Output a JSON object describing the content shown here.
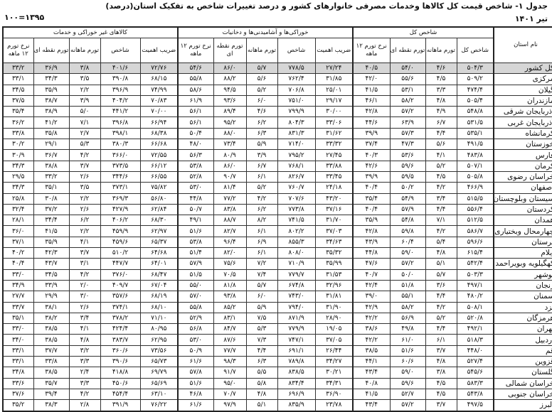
{
  "title": "جدول ۱- شاخص قیمت کل کالاها وخدمات مصرفی خانوارهای کشور و درصد تغییرات شاخص به تفکیک استان(درصد)",
  "period": "تیر ۱۴۰۱",
  "base": "۱۳۹۵=۱۰۰",
  "header": {
    "province": "نام استان",
    "groups": [
      "شاخص کل",
      "خوراکی‌ها و آشامیدنی‌ها و دخانیات",
      "کالاهای غیر خوراکی و خدمات"
    ],
    "total_cols": [
      "شاخص کل",
      "تورم ماهانه",
      "تورم نقطه ای",
      "نرخ تورم ۱۲ ماهه"
    ],
    "group_cols": [
      "ضریب اهمیت",
      "شاخص",
      "تورم ماهانه",
      "تورم نقطه ای",
      "نرخ تورم ۱۲ ماهه"
    ]
  },
  "rows": [
    [
      "کل کشور",
      "۵۰۴/۳",
      "۴/۶",
      "۵۴/۰",
      "۴۰/۵",
      "۲۷/۲۴",
      "۷۷۸/۵",
      "۵/۷",
      "۸۶/۰",
      "۵۴/۶",
      "۷۲/۷۶",
      "۴۰۱/۶",
      "۳/۸",
      "۳۶/۹",
      "۳۳/۲"
    ],
    [
      "مرکزی",
      "۵۰۹/۲",
      "۴/۵",
      "۵۵/۶",
      "۴۲/۰",
      "۳۱/۸۵",
      "۷۶۲/۴",
      "۵/۶",
      "۸۸/۲",
      "۵۵/۸",
      "۶۸/۱۵",
      "۳۹۰/۸",
      "۳/۵",
      "۳۴/۳",
      "۳۳/۱"
    ],
    [
      "گیلان",
      "۴۷۴/۴",
      "۳/۳",
      "۵۳/۱",
      "۴۱/۵",
      "۲۵/۰۱",
      "۷۰۶/۸",
      "۵/۲",
      "۹۴/۵",
      "۵۸/۶",
      "۷۴/۹۹",
      "۳۹۶/۹",
      "۲/۲",
      "۳۵/۹",
      "۳۴/۵"
    ],
    [
      "مازندران",
      "۵۰۵/۴",
      "۴/۸",
      "۵۸/۲",
      "۴۶/۱",
      "۲۹/۱۷",
      "۷۵۱/۰",
      "۶/۰",
      "۹۳/۶",
      "۶۱/۹",
      "۷۰/۸۳",
      "۴۰۴/۲",
      "۳/۹",
      "۳۸/۷",
      "۳۷/۵"
    ],
    [
      "آذربایجان شرقی",
      "۵۴۸/۸",
      "۴/۹",
      "۵۷/۲",
      "۴۲/۸",
      "۳۰/۰۰",
      "۷۹۹/۹",
      "۴/۶",
      "۸۹/۴",
      "۵۶/۱",
      "۷۰/۰۰",
      "۴۴۱/۲",
      "۵/۰",
      "۳۸/۹",
      "۳۵/۴"
    ],
    [
      "آذربایجان غربی",
      "۵۳۱/۵",
      "۶/۷",
      "۶۳/۹",
      "۴۴/۶",
      "۳۳/۰۶",
      "۸۰۴/۳",
      "۶/۲",
      "۹۵/۲",
      "۵۶/۱",
      "۶۶/۹۴",
      "۳۹۶/۸",
      "۷/۱",
      "۴۱/۲",
      "۳۶/۲"
    ],
    [
      "کرمانشاه",
      "۵۳۵/۱",
      "۴/۴",
      "۵۷/۳",
      "۳۹/۹",
      "۳۱/۶۲",
      "۸۳۱/۳",
      "۶/۳",
      "۸۸/۰",
      "۵۰/۴",
      "۶۸/۳۸",
      "۳۹۸/۱",
      "۲/۷",
      "۳۵/۸",
      "۳۳/۸"
    ],
    [
      "خوزستان",
      "۴۹۱/۵",
      "۵/۶",
      "۴۷/۳",
      "۳۷/۴",
      "۳۳/۳۲",
      "۷۱۴/۰",
      "۵/۹",
      "۷۳/۴",
      "۴۸/۰",
      "۶۶/۶۸",
      "۳۸۰/۳",
      "۵/۳",
      "۲۹/۱",
      "۳۰/۲"
    ],
    [
      "فارس",
      "۴۸۳/۸",
      "۴/۱",
      "۵۳/۶",
      "۴۰/۳",
      "۲۷/۴۵",
      "۷۹۵/۲",
      "۳/۹",
      "۸۰/۹",
      "۵۶/۳",
      "۷۲/۵۵",
      "۳۶۶/۰",
      "۴/۲",
      "۳۶/۷",
      "۳۰/۹"
    ],
    [
      "کرمان",
      "۵۰۷/۱",
      "۵/۲",
      "۵۹/۶",
      "۴۲/۶",
      "۳۳/۸۸",
      "۷۶۸/۱",
      "۶/۷",
      "۸۶/۰",
      "۵۳/۸",
      "۶۶/۱۲",
      "۳۷۳/۵",
      "۳/۷",
      "۳۸/۸",
      "۳۴/۳"
    ],
    [
      "خراسان رضوی",
      "۵۰۵/۸",
      "۴/۵",
      "۵۹/۵",
      "۳۹/۹",
      "۳۳/۴۵",
      "۸۲۶/۷",
      "۶/۱",
      "۹۰/۷",
      "۵۲/۸",
      "۶۶/۵۵",
      "۳۴۴/۶",
      "۲/۶",
      "۳۳/۲",
      "۲۹/۵"
    ],
    [
      "اصفهان",
      "۴۶۶/۹",
      "۴/۲",
      "۵۰/۲",
      "۴۰/۴",
      "۲۴/۱۸",
      "۷۶۰/۷",
      "۵/۲",
      "۸۱/۴",
      "۵۳/۰",
      "۷۵/۸۲",
      "۳۷۳/۱",
      "۳/۵",
      "۳۵/۱",
      "۳۴/۳"
    ],
    [
      "سیستان وبلوچستان",
      "۵۱۵/۵",
      "۳/۴",
      "۵۴/۹",
      "۳۵/۴",
      "۴۳/۲۰",
      "۷۰۷/۶",
      "۴/۲",
      "۷۷/۲",
      "۴۴/۸",
      "۵۶/۸۰",
      "۳۶۹/۳",
      "۲/۲",
      "۳۰/۸",
      "۲۵/۸"
    ],
    [
      "کردستان",
      "۵۵۶/۴",
      "۴/۴",
      "۵۷/۹",
      "۴۰/۴",
      "۳۷/۱۶",
      "۷۷۳/۸",
      "۶/۲",
      "۸۳/۸",
      "۵۰/۷",
      "۶۲/۸۴",
      "۴۲۷/۹",
      "۲/۶",
      "۳۷/۲",
      "۳۲/۴"
    ],
    [
      "همدان",
      "۵۱۲/۵",
      "۷/۱",
      "۵۴/۸",
      "۳۵/۹",
      "۳۱/۷۰",
      "۷۴۱/۵",
      "۸/۲",
      "۸۸/۷",
      "۴۹/۱",
      "۶۸/۳۰",
      "۴۰۶/۲",
      "۶/۲",
      "۳۴/۴",
      "۲۸/۱"
    ],
    [
      "چهارمحال وبختیاری",
      "۵۸۶/۷",
      "۴/۲",
      "۵۹/۸",
      "۴۲/۸",
      "۳۷/۰۳",
      "۸۰۲/۲",
      "۶/۱",
      "۸۲/۷",
      "۵۱/۶",
      "۶۲/۹۷",
      "۴۵۹/۹",
      "۲/۲",
      "۴۱/۵",
      "۳۶/۰"
    ],
    [
      "لرستان",
      "۵۹۶/۶",
      "۵/۴",
      "۶۰/۴",
      "۴۳/۹",
      "۳۴/۶۳",
      "۸۵۵/۳",
      "۶/۹",
      "۹۶/۴",
      "۵۳/۸",
      "۶۵/۳۷",
      "۴۵۹/۶",
      "۴/۱",
      "۳۵/۹",
      "۳۷/۱"
    ],
    [
      "ایلام",
      "۶۱۵/۴",
      "۴/۸",
      "۵۹/۰",
      "۴۴/۸",
      "۳۵/۳۲",
      "۸۰۸/۰",
      "۶/۱",
      "۸۲/۰",
      "۵۱/۴",
      "۶۴/۶۸",
      "۵۱۰/۲",
      "۳/۷",
      "۴۲/۳",
      "۴۰/۲"
    ],
    [
      "کهگیلویه وبویراحمد",
      "۵۴۲/۴",
      "۵/۱",
      "۵۷/۲",
      "۴۷/۶",
      "۳۵/۹۹",
      "۷۱۰/۹",
      "۷/۲",
      "۷۵/۶",
      "۵۷/۹",
      "۶۴/۰۱",
      "۴۴۷/۷",
      "۳/۱",
      "۴۳/۷",
      "۴۰/۴"
    ],
    [
      "بوشهر",
      "۵۰۳/۳",
      "۵/۷",
      "۵۰/۰",
      "۴۰/۷",
      "۳۱/۵۳",
      "۷۷۹/۷",
      "۷/۴",
      "۷۰/۵",
      "۵۱/۵",
      "۶۸/۴۷",
      "۳۷۶/۰",
      "۴/۲",
      "۳۴/۵",
      "۳۳/۰"
    ],
    [
      "زنجان",
      "۴۹۷/۱",
      "۳/۶",
      "۵۱/۸",
      "۴۲/۴",
      "۳۲/۹۶",
      "۶۷۴/۸",
      "۵/۷",
      "۸۱/۸",
      "۵۵/۰",
      "۶۷/۰۴",
      "۴۰۹/۷",
      "۲/۰",
      "۳۳/۹",
      "۳۴/۹"
    ],
    [
      "سمنان",
      "۴۸۰/۲",
      "۴/۴",
      "۵۵/۱",
      "۳۹/۰",
      "۳۱/۸۱",
      "۷۴۳/۰",
      "۶/۰",
      "۹۳/۸",
      "۵۷/۰",
      "۶۸/۱۹",
      "۳۵۷/۶",
      "۳/۰",
      "۲۹/۹",
      "۲۷/۷"
    ],
    [
      "یزد",
      "۵۰۸/۱",
      "۴/۲",
      "۵۸/۲",
      "۴۲/۹",
      "۳۱/۹۰",
      "۷۹۴/۰",
      "۵/۹",
      "۸۵/۲",
      "۵۵/۸",
      "۶۸/۱۰",
      "۳۷۴/۱",
      "۲/۶",
      "۳۸/۱",
      "۳۳/۷"
    ],
    [
      "هرمزگان",
      "۵۲۰/۸",
      "۵/۲",
      "۵۶/۹",
      "۴۲/۲",
      "۲۸/۹۰",
      "۸۷۱/۹",
      "۷/۵",
      "۸۳/۱",
      "۵۲/۹",
      "۷۱/۱۰",
      "۳۷۸/۲",
      "۳/۴",
      "۳۸/۲",
      "۳۵/۱"
    ],
    [
      "تهران",
      "۴۹۲/۱",
      "۴/۴",
      "۴۹/۸",
      "۳۸/۶",
      "۱۹/۰۵",
      "۷۷۹/۹",
      "۵/۳",
      "۸۴/۷",
      "۵۶/۸",
      "۸۰/۹۵",
      "۴۲۴/۴",
      "۴/۱",
      "۳۸/۵",
      "۳۳/۰"
    ],
    [
      "اردبیل",
      "۵۱۸/۳",
      "۶/۱",
      "۶۱/۰",
      "۴۲/۲",
      "۳۷/۰۵",
      "۷۴۷/۱",
      "۷/۳",
      "۸۷/۶",
      "۵۳/۰",
      "۶۲/۹۵",
      "۳۸۳/۷",
      "۴/۸",
      "۳۸/۵",
      "۳۴/۰"
    ],
    [
      "قم",
      "۴۴۸/۰",
      "۳/۷",
      "۵۱/۶",
      "۳۸/۵",
      "۲۶/۴۴",
      "۶۹۱/۱",
      "۴/۴",
      "۷۷/۷",
      "۵۰/۹",
      "۷۳/۵۶",
      "۳۶۰/۶",
      "۳/۲",
      "۳۷/۷",
      "۳۳/۱"
    ],
    [
      "قزوین",
      "۵۲۷/۴",
      "۴/۸",
      "۶۰/۶",
      "۴۴/۱",
      "۳۴/۲۷",
      "۷۸۹/۸",
      "۶/۳",
      "۹۸/۳",
      "۶۱/۶",
      "۶۵/۷۳",
      "۳۹۰/۶",
      "۳/۳",
      "۳۳/۸",
      "۳۳/۱"
    ],
    [
      "گلستان",
      "۵۴۵/۶",
      "۳/۸",
      "۵۹/۰",
      "۴۳/۴",
      "۳۰/۲۱",
      "۸۳۸/۵",
      "۵/۵",
      "۹۱/۷",
      "۵۷/۸",
      "۶۹/۷۹",
      "۴۱۸/۸",
      "۲/۴",
      "۳۸/۵",
      "۳۴/۸"
    ],
    [
      "خراسان شمالی",
      "۵۸۳/۳",
      "۴/۵",
      "۵۹/۶",
      "۴۰/۸",
      "۳۴/۳۱",
      "۸۳۴/۴",
      "۵/۸",
      "۹۵/۰",
      "۵۱/۶",
      "۶۵/۶۹",
      "۴۵۰/۶",
      "۳/۳",
      "۳۵/۷",
      "۳۳/۶"
    ],
    [
      "خراسان جنوبی",
      "۵۴۳/۸",
      "۴/۵",
      "۵۲/۷",
      "۴۱/۵",
      "۳۶/۹۰",
      "۶۹۶/۹",
      "۴/۸",
      "۷۰/۷",
      "۴۶/۸",
      "۶۳/۱۰",
      "۴۵۴/۴",
      "۴/۲",
      "۳۹/۴",
      "۳۷/۶"
    ],
    [
      "البرز",
      "۴۹۷/۵",
      "۳/۷",
      "۵۷/۲",
      "۴۳/۴",
      "۲۳/۷۸",
      "۸۳۵/۹",
      "۵/۱",
      "۹۷/۹",
      "۶۱/۶",
      "۷۶/۲۲",
      "۳۹۱/۹",
      "۲/۸",
      "۳۸/۳",
      "۳۵/۲"
    ]
  ]
}
